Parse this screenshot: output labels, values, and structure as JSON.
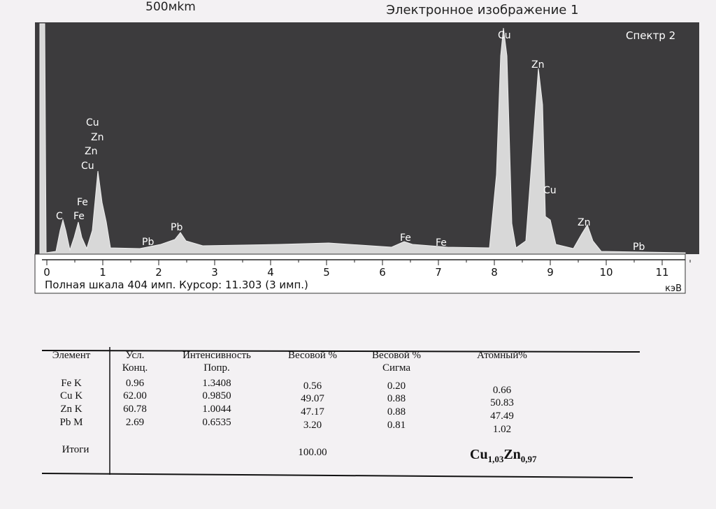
{
  "header": {
    "scale": "500мkm",
    "image_title": "Электронное изображение 1"
  },
  "spectrum": {
    "title": "Спектр 2",
    "peak_labels": [
      "Cu",
      "Zn",
      "Zn",
      "Cu",
      "Fe",
      "C",
      "Fe",
      "Pb",
      "Pb",
      "Fe",
      "Fe",
      "Cu",
      "Zn",
      "Cu",
      "Zn",
      "Pb"
    ],
    "x_ticks": [
      "0",
      "1",
      "2",
      "3",
      "4",
      "5",
      "6",
      "7",
      "8",
      "9",
      "10",
      "11"
    ],
    "status": "Полная шкала 404 имп. Курсор: 11.303  (3 имп.)",
    "unit": "кэВ"
  },
  "table": {
    "headers": [
      [
        "Элемент"
      ],
      [
        "Усл.",
        "Конц."
      ],
      [
        "Интенсивность",
        "Попр."
      ],
      [
        "Весовой %"
      ],
      [
        "Весовой %",
        "Сигма"
      ],
      [
        "Атомный%"
      ]
    ],
    "rows": [
      [
        "Fe K",
        "0.96",
        "1.3408",
        "0.56",
        "0.20",
        "0.66"
      ],
      [
        "Cu K",
        "62.00",
        "0.9850",
        "49.07",
        "0.88",
        "50.83"
      ],
      [
        "Zn K",
        "60.78",
        "1.0044",
        "47.17",
        "0.88",
        "47.49"
      ],
      [
        "Pb M",
        "2.69",
        "0.6535",
        "3.20",
        "0.81",
        "1.02"
      ]
    ],
    "totals_label": "Итоги",
    "totals_weight": "100.00",
    "formula": [
      "Cu",
      "1,03",
      "Zn",
      "0,97"
    ]
  }
}
